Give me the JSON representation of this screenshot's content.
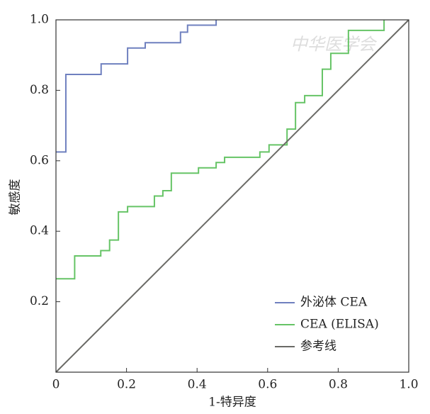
{
  "chart_data": {
    "type": "line",
    "xlabel": "1-特异度",
    "ylabel": "敏感度",
    "watermark": "中华医学会",
    "xlim": [
      0,
      1
    ],
    "ylim": [
      0,
      1
    ],
    "xticks": [
      0,
      0.2,
      0.4,
      0.6,
      0.8,
      {
        "value": 1,
        "label": "1.0"
      }
    ],
    "yticks": [
      0.2,
      0.4,
      0.6,
      0.8,
      {
        "value": 1,
        "label": "1.0"
      }
    ],
    "legend": "lower right",
    "series": [
      {
        "name": "外泌体 CEA",
        "color": "#6f80bf",
        "x": [
          0,
          0.028,
          0.028,
          0.128,
          0.128,
          0.203,
          0.203,
          0.253,
          0.253,
          0.353,
          0.353,
          0.373,
          0.373,
          0.454,
          0.454
        ],
        "values": [
          0.625,
          0.625,
          0.845,
          0.845,
          0.875,
          0.875,
          0.92,
          0.92,
          0.935,
          0.935,
          0.965,
          0.965,
          0.985,
          0.985,
          1.0
        ]
      },
      {
        "name": "CEA (ELISA)",
        "color": "#66c466",
        "x": [
          0,
          0.053,
          0.053,
          0.127,
          0.127,
          0.152,
          0.152,
          0.177,
          0.177,
          0.203,
          0.203,
          0.279,
          0.279,
          0.303,
          0.303,
          0.327,
          0.327,
          0.404,
          0.404,
          0.454,
          0.454,
          0.478,
          0.478,
          0.578,
          0.578,
          0.604,
          0.604,
          0.655,
          0.655,
          0.679,
          0.679,
          0.705,
          0.705,
          0.755,
          0.755,
          0.779,
          0.779,
          0.829,
          0.829,
          0.93,
          0.93
        ],
        "values": [
          0.265,
          0.265,
          0.33,
          0.33,
          0.345,
          0.345,
          0.375,
          0.375,
          0.455,
          0.455,
          0.47,
          0.47,
          0.5,
          0.5,
          0.515,
          0.515,
          0.565,
          0.565,
          0.58,
          0.58,
          0.595,
          0.595,
          0.61,
          0.61,
          0.625,
          0.625,
          0.645,
          0.645,
          0.69,
          0.69,
          0.765,
          0.765,
          0.785,
          0.785,
          0.86,
          0.86,
          0.905,
          0.905,
          0.97,
          0.97,
          1.0
        ]
      },
      {
        "name": "参考线",
        "color": "#6a6a66",
        "x": [
          0,
          1
        ],
        "values": [
          0,
          1
        ]
      }
    ]
  }
}
